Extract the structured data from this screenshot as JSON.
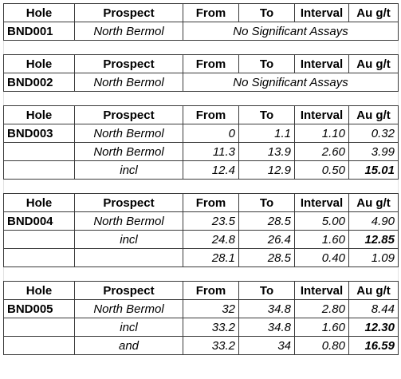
{
  "headers": [
    "Hole",
    "Prospect",
    "From",
    "To",
    "Interval",
    "Au g/t"
  ],
  "blocks": [
    {
      "hole": "BND001",
      "prospect": "North Bermol",
      "note": "No Significant Assays"
    },
    {
      "hole": "BND002",
      "prospect": "North Bermol",
      "note": "No Significant Assays"
    },
    {
      "hole": "BND003",
      "rows": [
        {
          "prospect": "North Bermol",
          "from": "0",
          "to": "1.1",
          "interval": "1.10",
          "au": "0.32"
        },
        {
          "prospect": "North Bermol",
          "from": "11.3",
          "to": "13.9",
          "interval": "2.60",
          "au": "3.99"
        },
        {
          "prospect": "incl",
          "from": "12.4",
          "to": "12.9",
          "interval": "0.50",
          "au": "15.01"
        }
      ]
    },
    {
      "hole": "BND004",
      "rows": [
        {
          "prospect": "North Bermol",
          "from": "23.5",
          "to": "28.5",
          "interval": "5.00",
          "au": "4.90"
        },
        {
          "prospect": "incl",
          "from": "24.8",
          "to": "26.4",
          "interval": "1.60",
          "au": "12.85"
        },
        {
          "prospect": "",
          "from": "28.1",
          "to": "28.5",
          "interval": "0.40",
          "au": "1.09"
        }
      ]
    },
    {
      "hole": "BND005",
      "rows": [
        {
          "prospect": "North Bermol",
          "from": "32",
          "to": "34.8",
          "interval": "2.80",
          "au": "8.44"
        },
        {
          "prospect": "incl",
          "from": "33.2",
          "to": "34.8",
          "interval": "1.60",
          "au": "12.30"
        },
        {
          "prospect": "and",
          "from": "33.2",
          "to": "34",
          "interval": "0.80",
          "au": "16.59"
        }
      ]
    }
  ]
}
